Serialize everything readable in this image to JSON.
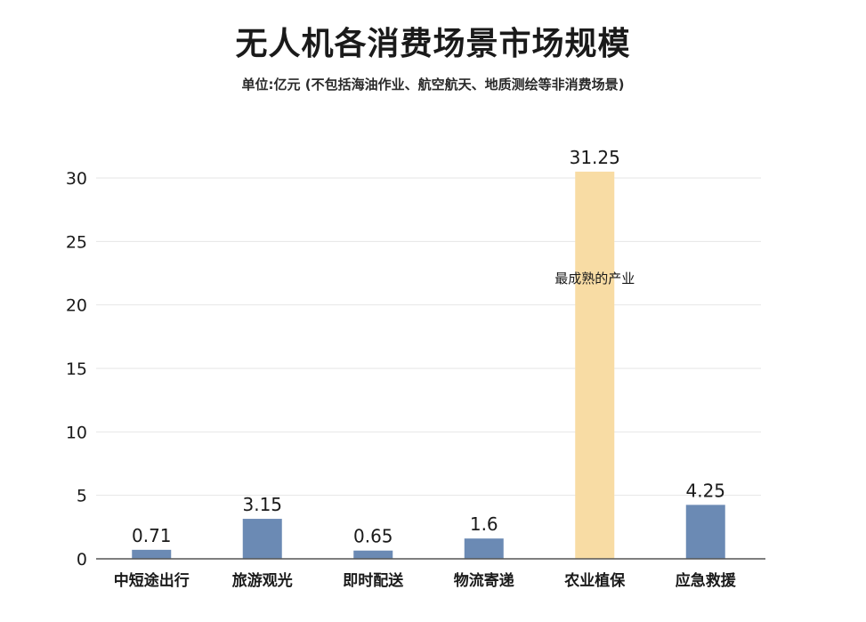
{
  "chart_data": {
    "type": "bar",
    "title": "无人机各消费场景市场规模",
    "subtitle": "单位:亿元  (不包括海油作业、航空航天、地质测绘等非消费场景)",
    "categories": [
      "中短途出行",
      "旅游观光",
      "即时配送",
      "物流寄递",
      "农业植保",
      "应急救援"
    ],
    "values": [
      0.71,
      3.15,
      0.65,
      1.6,
      31.25,
      4.25
    ],
    "data_labels": [
      "0.71",
      "3.15",
      "0.65",
      "1.6",
      "31.25",
      "4.25"
    ],
    "yticks": [
      0,
      5,
      10,
      15,
      20,
      25,
      30
    ],
    "ylim": [
      0,
      30
    ],
    "grid": true,
    "colors": {
      "default": "#6b8ab4",
      "highlight": "#f8dca4",
      "grid": "#e6e6e6",
      "axis": "#555555"
    },
    "highlight_index": 4,
    "annotation": {
      "category_index": 4,
      "text": "最成熟的产业"
    }
  }
}
